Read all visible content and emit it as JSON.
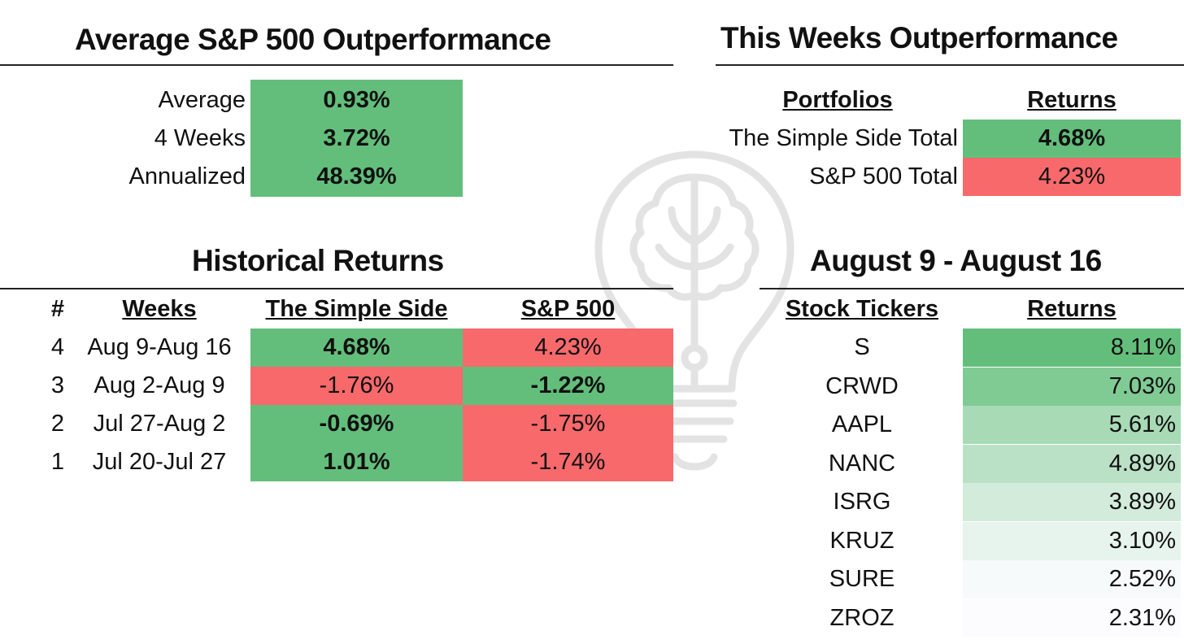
{
  "colors": {
    "green": "#63be7b",
    "red": "#f8696b",
    "ticker_scale_high": "#63be7b",
    "ticker_scale_low": "#fcfcff"
  },
  "avg": {
    "title": "Average S&P 500 Outperformance",
    "rows": [
      {
        "label": "Average",
        "value": "0.93%"
      },
      {
        "label": "4 Weeks",
        "value": "3.72%"
      },
      {
        "label": "Annualized",
        "value": "48.39%"
      }
    ]
  },
  "week": {
    "title": "This Weeks Outperformance",
    "col_portfolios": "Portfolios",
    "col_returns": "Returns",
    "rows": [
      {
        "label": "The Simple Side Total",
        "value": "4.68%",
        "status": "green"
      },
      {
        "label": "S&P 500 Total",
        "value": "4.23%",
        "status": "red"
      }
    ]
  },
  "hist": {
    "title": "Historical Returns",
    "col_num": "#",
    "col_weeks": "Weeks",
    "col_simple": "The Simple Side",
    "col_sp": "S&P 500",
    "rows": [
      {
        "num": "4",
        "weeks": "Aug 9-Aug 16",
        "simple": "4.68%",
        "sp": "4.23%",
        "simple_status": "green",
        "sp_status": "red"
      },
      {
        "num": "3",
        "weeks": "Aug 2-Aug 9",
        "simple": "-1.76%",
        "sp": "-1.22%",
        "simple_status": "red",
        "sp_status": "green"
      },
      {
        "num": "2",
        "weeks": "Jul 27-Aug 2",
        "simple": "-0.69%",
        "sp": "-1.75%",
        "simple_status": "green",
        "sp_status": "red"
      },
      {
        "num": "1",
        "weeks": "Jul 20-Jul 27",
        "simple": "1.01%",
        "sp": "-1.74%",
        "simple_status": "green",
        "sp_status": "red"
      }
    ]
  },
  "tickers": {
    "title": "August 9 - August 16",
    "col_tickers": "Stock Tickers",
    "col_returns": "Returns",
    "rows": [
      {
        "ticker": "S",
        "value": "8.11%",
        "intensity": 1.0
      },
      {
        "ticker": "CRWD",
        "value": "7.03%",
        "intensity": 0.81
      },
      {
        "ticker": "AAPL",
        "value": "5.61%",
        "intensity": 0.55
      },
      {
        "ticker": "NANC",
        "value": "4.89%",
        "intensity": 0.43
      },
      {
        "ticker": "ISRG",
        "value": "3.89%",
        "intensity": 0.27
      },
      {
        "ticker": "KRUZ",
        "value": "3.10%",
        "intensity": 0.14
      },
      {
        "ticker": "SURE",
        "value": "2.52%",
        "intensity": 0.04
      },
      {
        "ticker": "ZROZ",
        "value": "2.31%",
        "intensity": 0.0
      }
    ]
  }
}
